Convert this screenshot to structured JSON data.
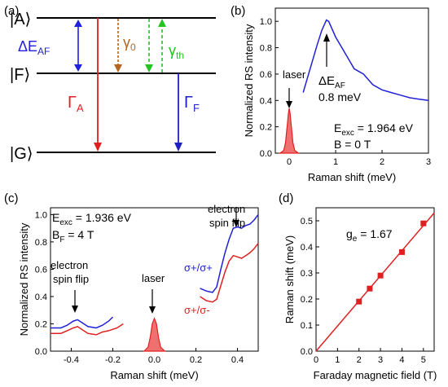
{
  "panels": {
    "a": {
      "label": "(a)",
      "levels": {
        "A": "|A⟩",
        "F": "|F⟩",
        "G": "|G⟩"
      },
      "arrows": {
        "delta_main": "ΔE",
        "delta_sub": "AF",
        "gamma0_main": "γ",
        "gamma0_sub": "0",
        "gammath_main": "γ",
        "gammath_sub": "th",
        "GammaA_main": "Γ",
        "GammaA_sub": "A",
        "GammaF_main": "Γ",
        "GammaF_sub": "F"
      },
      "colors": {
        "delta": "#1f1fdc",
        "gamma0": "#b5651d",
        "gammath": "#22c322",
        "GammaA": "#e02020",
        "GammaF": "#1f1fbf"
      }
    },
    "b": {
      "label": "(b)",
      "ann_laser": "laser",
      "ann_delta_main": "ΔE",
      "ann_delta_sub": "AF",
      "ann_delta_value": "0.8 meV",
      "ann_eexc_main": "E",
      "ann_eexc_sub": "exc",
      "ann_eexc_value": " =  1.964 eV",
      "ann_b": "B = 0 T"
    },
    "c": {
      "label": "(c)",
      "ann_eexc_main": "E",
      "ann_eexc_sub": "exc",
      "ann_eexc_value": " =  1.936 eV",
      "ann_bf_main": "B",
      "ann_bf_sub": "F",
      "ann_bf_value": " =  4 T",
      "ann_flip_left_1": "electron",
      "ann_flip_left_2": "spin flip",
      "ann_laser": "laser",
      "ann_flip_right_1": "electron",
      "ann_flip_right_2": "spin flip",
      "legend_blue": "σ+/σ+",
      "legend_red": "σ+/σ-"
    },
    "d": {
      "label": "(d)",
      "ann_ge_main": "g",
      "ann_ge_sub": "e",
      "ann_ge_value": " = 1.67"
    }
  },
  "colors": {
    "blue": "#2020d8",
    "red": "#e02020",
    "fill_red": "#f07070"
  },
  "chart_data": [
    {
      "panel": "b",
      "type": "line",
      "xlabel": "Raman shift (meV)",
      "ylabel": "Normalized RS intensity",
      "xlim": [
        -0.3,
        3.0
      ],
      "ylim": [
        0,
        1.1
      ],
      "xticks": [
        0,
        1,
        2,
        3
      ],
      "yticks": [
        0.0,
        0.2,
        0.4,
        0.6,
        0.8,
        1.0
      ],
      "grid": false,
      "series": [
        {
          "color": "#2020d8",
          "x": [
            0.3,
            0.4,
            0.5,
            0.6,
            0.7,
            0.8,
            0.85,
            0.9,
            1.0,
            1.1,
            1.2,
            1.3,
            1.4,
            1.5,
            1.6,
            1.7,
            1.8,
            2.0,
            2.2,
            2.4,
            2.6,
            2.8,
            3.0
          ],
          "y": [
            0.46,
            0.58,
            0.7,
            0.82,
            0.93,
            1.01,
            1.0,
            0.96,
            0.88,
            0.82,
            0.76,
            0.7,
            0.64,
            0.62,
            0.6,
            0.56,
            0.52,
            0.48,
            0.46,
            0.44,
            0.42,
            0.41,
            0.4
          ]
        },
        {
          "color": "#e02020",
          "fill": true,
          "x": [
            -0.2,
            -0.12,
            -0.08,
            -0.04,
            -0.02,
            0.0,
            0.02,
            0.04,
            0.08,
            0.12,
            0.2
          ],
          "y": [
            0.0,
            0.02,
            0.08,
            0.22,
            0.3,
            0.34,
            0.3,
            0.22,
            0.08,
            0.02,
            0.0
          ]
        }
      ]
    },
    {
      "panel": "c",
      "type": "line",
      "xlabel": "Raman shift (meV)",
      "ylabel": "Normalized RS intensity",
      "xlim": [
        -0.5,
        0.5
      ],
      "ylim": [
        0,
        1.05
      ],
      "xticks": [
        -0.4,
        -0.2,
        0.0,
        0.2,
        0.4
      ],
      "yticks": [
        0.0,
        0.2,
        0.4,
        0.6,
        0.8,
        1.0
      ],
      "grid": false,
      "series": [
        {
          "name": "σ+/σ+",
          "color": "#2020d8",
          "x": [
            -0.5,
            -0.45,
            -0.42,
            -0.39,
            -0.37,
            -0.35,
            -0.32,
            -0.28,
            -0.25,
            -0.22,
            -0.2
          ],
          "y": [
            0.17,
            0.17,
            0.19,
            0.22,
            0.23,
            0.21,
            0.18,
            0.17,
            0.19,
            0.22,
            0.25
          ]
        },
        {
          "name": "σ+/σ+",
          "color": "#2020d8",
          "x": [
            0.22,
            0.25,
            0.28,
            0.3,
            0.32,
            0.34,
            0.36,
            0.38,
            0.4,
            0.42,
            0.44,
            0.46,
            0.48,
            0.5
          ],
          "y": [
            0.46,
            0.44,
            0.43,
            0.47,
            0.6,
            0.72,
            0.82,
            0.9,
            0.91,
            0.9,
            0.92,
            0.93,
            0.96,
            1.0
          ]
        },
        {
          "name": "σ+/σ-",
          "color": "#e02020",
          "x": [
            -0.5,
            -0.45,
            -0.42,
            -0.39,
            -0.37,
            -0.35,
            -0.32,
            -0.28,
            -0.25,
            -0.22,
            -0.18,
            -0.15
          ],
          "y": [
            0.13,
            0.13,
            0.15,
            0.17,
            0.18,
            0.16,
            0.13,
            0.12,
            0.14,
            0.15,
            0.17,
            0.2
          ]
        },
        {
          "name": "σ+/σ-",
          "color": "#e02020",
          "x": [
            0.22,
            0.25,
            0.28,
            0.3,
            0.32,
            0.34,
            0.36,
            0.38,
            0.4,
            0.42,
            0.44,
            0.46,
            0.48,
            0.5
          ],
          "y": [
            0.4,
            0.37,
            0.36,
            0.38,
            0.48,
            0.58,
            0.66,
            0.7,
            0.69,
            0.68,
            0.7,
            0.72,
            0.75,
            0.79
          ]
        },
        {
          "color": "#e02020",
          "fill": true,
          "x": [
            -0.05,
            -0.03,
            -0.02,
            -0.01,
            0.0,
            0.01,
            0.02,
            0.03,
            0.05
          ],
          "y": [
            0.0,
            0.03,
            0.1,
            0.2,
            0.24,
            0.2,
            0.1,
            0.03,
            0.0
          ]
        }
      ]
    },
    {
      "panel": "d",
      "type": "scatter",
      "xlabel": "Faraday magnetic field (T)",
      "ylabel": "Raman shift (meV)",
      "xlim": [
        0,
        5.5
      ],
      "ylim": [
        0,
        0.55
      ],
      "xticks": [
        0,
        1,
        2,
        3,
        4,
        5
      ],
      "yticks": [
        0.0,
        0.1,
        0.2,
        0.3,
        0.4,
        0.5
      ],
      "grid": false,
      "series": [
        {
          "color": "#e02020",
          "x": [
            2.0,
            2.5,
            3.0,
            4.0,
            5.0
          ],
          "y": [
            0.19,
            0.24,
            0.29,
            0.38,
            0.49
          ]
        }
      ],
      "fit_line": {
        "x": [
          0,
          5.5
        ],
        "y": [
          0.0,
          0.53
        ]
      }
    }
  ]
}
